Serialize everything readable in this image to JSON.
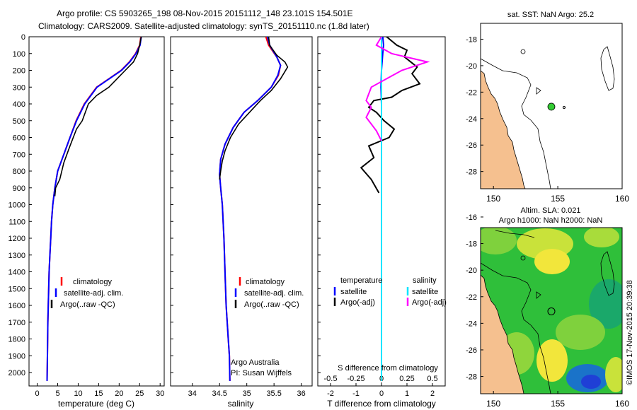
{
  "header": {
    "line1": "Argo profile: CS 5903265_198 08-Nov-2015 20151112_148 23.101S 154.501E",
    "line2": "Climatology: CARS2009. Satellite-adjusted climatology: synTS_20151110.nc (1.8d later)"
  },
  "colors": {
    "climatology": "#ff0000",
    "satellite": "#0000ff",
    "argo": "#000000",
    "sat_salinity": "#00e5ff",
    "argo_salinity": "#ff00ff",
    "land": "#f5c08f"
  },
  "chart_data": [
    {
      "type": "line",
      "name": "temperature-profile",
      "xlabel": "temperature (deg C)",
      "ylabel": "",
      "xlim": [
        -2,
        31
      ],
      "ylim": [
        2080,
        0
      ],
      "xticks": [
        0,
        5,
        10,
        15,
        20,
        25,
        30
      ],
      "yticks": [
        0,
        100,
        200,
        300,
        400,
        500,
        600,
        700,
        800,
        900,
        1000,
        1100,
        1200,
        1300,
        1400,
        1500,
        1600,
        1700,
        1800,
        1900,
        2000
      ],
      "series": [
        {
          "name": "climatology",
          "color": "#ff0000",
          "x": [
            25.3,
            25.0,
            24.0,
            22.5,
            20.5,
            17.5,
            14.5,
            11.5,
            9.5,
            8.0,
            6.5,
            5.0,
            4.3,
            3.8,
            3.5,
            3.3,
            3.1,
            2.9,
            2.8,
            2.7,
            2.6,
            2.5,
            2.4
          ],
          "y": [
            0,
            50,
            100,
            150,
            200,
            250,
            300,
            400,
            500,
            600,
            700,
            800,
            900,
            1000,
            1100,
            1200,
            1300,
            1400,
            1500,
            1600,
            1700,
            1900,
            2050
          ]
        },
        {
          "name": "satellite-adj. clim.",
          "color": "#0000ff",
          "x": [
            25.4,
            25.1,
            24.1,
            22.6,
            20.6,
            17.6,
            14.6,
            11.6,
            9.6,
            8.0,
            6.5,
            5.0,
            4.3,
            3.8,
            3.5,
            3.3,
            3.1,
            2.9,
            2.8,
            2.7,
            2.6,
            2.5,
            2.4
          ],
          "y": [
            0,
            50,
            100,
            150,
            200,
            250,
            300,
            400,
            500,
            600,
            700,
            800,
            900,
            1000,
            1100,
            1200,
            1300,
            1400,
            1500,
            1600,
            1700,
            1900,
            2050
          ]
        },
        {
          "name": "Argo(..raw -QC)",
          "color": "#000000",
          "x": [
            25.4,
            25.0,
            24.5,
            23.5,
            21.5,
            19.5,
            17.5,
            14.5,
            12.5,
            11.0,
            9.6,
            8.0,
            6.5,
            5.5,
            4.5,
            4.3
          ],
          "y": [
            0,
            50,
            100,
            150,
            200,
            250,
            300,
            350,
            400,
            500,
            550,
            650,
            750,
            850,
            900,
            950
          ]
        }
      ],
      "legend": [
        "climatology",
        "satellite-adj. clim.",
        "Argo(..raw -QC)"
      ]
    },
    {
      "type": "line",
      "name": "salinity-profile",
      "xlabel": "salinity",
      "ylabel": "",
      "xlim": [
        33.6,
        36.2
      ],
      "ylim": [
        2080,
        0
      ],
      "xticks": [
        34,
        34.5,
        35,
        35.5,
        36
      ],
      "series": [
        {
          "name": "climatology",
          "color": "#ff0000",
          "x": [
            35.35,
            35.4,
            35.55,
            35.62,
            35.58,
            35.45,
            35.2,
            34.95,
            34.75,
            34.6,
            34.52,
            34.5,
            34.52,
            34.55,
            34.58,
            34.6,
            34.62,
            34.64,
            34.66,
            34.68,
            34.69
          ],
          "y": [
            0,
            50,
            120,
            170,
            230,
            300,
            380,
            450,
            540,
            640,
            730,
            820,
            900,
            1000,
            1200,
            1400,
            1600,
            1700,
            1800,
            1900,
            2050
          ]
        },
        {
          "name": "satellite-adj. clim.",
          "color": "#0000ff",
          "x": [
            35.38,
            35.42,
            35.55,
            35.62,
            35.57,
            35.45,
            35.2,
            34.95,
            34.75,
            34.6,
            34.52,
            34.5,
            34.52,
            34.55,
            34.58,
            34.6,
            34.62,
            34.64,
            34.66,
            34.68,
            34.69
          ],
          "y": [
            0,
            50,
            120,
            170,
            230,
            300,
            380,
            450,
            540,
            640,
            730,
            820,
            900,
            1000,
            1200,
            1400,
            1600,
            1700,
            1800,
            1900,
            2050
          ]
        },
        {
          "name": "Argo(..raw -QC)",
          "color": "#000000",
          "x": [
            35.4,
            35.42,
            35.55,
            35.7,
            35.75,
            35.62,
            35.45,
            35.25,
            35.05,
            34.85,
            34.7,
            34.6,
            34.55,
            34.52,
            34.5
          ],
          "y": [
            0,
            50,
            110,
            150,
            180,
            250,
            320,
            380,
            450,
            520,
            600,
            680,
            740,
            800,
            850
          ]
        }
      ],
      "legend": [
        "climatology",
        "satellite-adj. clim.",
        "Argo(..raw -QC)"
      ]
    },
    {
      "type": "line",
      "name": "difference-profile",
      "xlabel": "T difference from climatology",
      "toplabel": "S difference from climatology",
      "xlim": [
        -2.5,
        2.5
      ],
      "ylim": [
        2080,
        0
      ],
      "xticks": [
        -2,
        -1,
        0,
        1,
        2
      ],
      "sticks": [
        -0.5,
        -0.25,
        0,
        0.25,
        0.5
      ],
      "series": [
        {
          "name": "satellite",
          "group": "temperature",
          "color": "#0000ff",
          "x": [
            0.05,
            0.08,
            0.05,
            0.0,
            -0.02,
            0.0,
            0.0,
            0.0,
            0.0,
            0.0,
            0.0
          ],
          "y": [
            0,
            50,
            100,
            200,
            300,
            400,
            600,
            800,
            1000,
            1200,
            1300
          ]
        },
        {
          "name": "Argo(-adj)",
          "group": "temperature",
          "color": "#000000",
          "x": [
            0.2,
            0.6,
            1.0,
            0.9,
            1.4,
            1.2,
            1.5,
            0.8,
            0.4,
            -0.3,
            -0.5,
            -0.2,
            0.1,
            0.5,
            0.3,
            -0.5,
            -0.3,
            -0.8,
            -0.4,
            -0.1
          ],
          "y": [
            0,
            50,
            80,
            120,
            180,
            220,
            280,
            320,
            360,
            380,
            420,
            450,
            500,
            550,
            600,
            650,
            720,
            780,
            850,
            930
          ]
        },
        {
          "name": "satellite",
          "group": "salinity",
          "color": "#00e5ff",
          "x": [
            0.0,
            0.0,
            0.0,
            0.0,
            0.0,
            0.0,
            0.0,
            0.0
          ],
          "y": [
            0,
            100,
            300,
            600,
            900,
            1200,
            1600,
            2050
          ]
        },
        {
          "name": "Argo(-adj)",
          "group": "salinity",
          "color": "#ff00ff",
          "x": [
            0.0,
            -0.05,
            0.1,
            0.45,
            0.2,
            0.05,
            -0.1,
            -0.15,
            -0.1,
            -0.15,
            -0.05,
            0.0
          ],
          "y": [
            0,
            50,
            100,
            150,
            200,
            250,
            300,
            380,
            420,
            480,
            560,
            620
          ]
        }
      ],
      "legend_titles": [
        "temperature",
        "salinity"
      ],
      "legend": [
        "satellite",
        "Argo(-adj)",
        "satellite",
        "Argo(-adj)"
      ]
    },
    {
      "type": "map",
      "name": "sst-map",
      "title": "sat. SST: NaN Argo: 25.2",
      "xlim": [
        149,
        160
      ],
      "ylim": [
        -29.3,
        -16.8
      ],
      "xticks": [
        150,
        155,
        160
      ],
      "yticks": [
        -18,
        -20,
        -22,
        -24,
        -26,
        -28
      ],
      "float_position": [
        154.5,
        -23.1
      ],
      "float_color": "#33cc33"
    },
    {
      "type": "heatmap",
      "name": "sla-map",
      "title_line1": "Altim. SLA: 0.021",
      "title_line2": "Argo h1000: NaN h2000: NaN",
      "xlim": [
        149,
        160
      ],
      "ylim": [
        -29.3,
        -16.8
      ],
      "xticks": [
        150,
        155,
        160
      ],
      "yticks": [
        -16,
        -18,
        -20,
        -22,
        -24,
        -26,
        -28
      ],
      "float_position": [
        154.5,
        -23.1
      ]
    }
  ],
  "annotations": {
    "institution": "Argo Australia",
    "pi": "PI: Susan Wijffels",
    "credit": "©IMOS 17-Nov-2015 20:39:38"
  }
}
